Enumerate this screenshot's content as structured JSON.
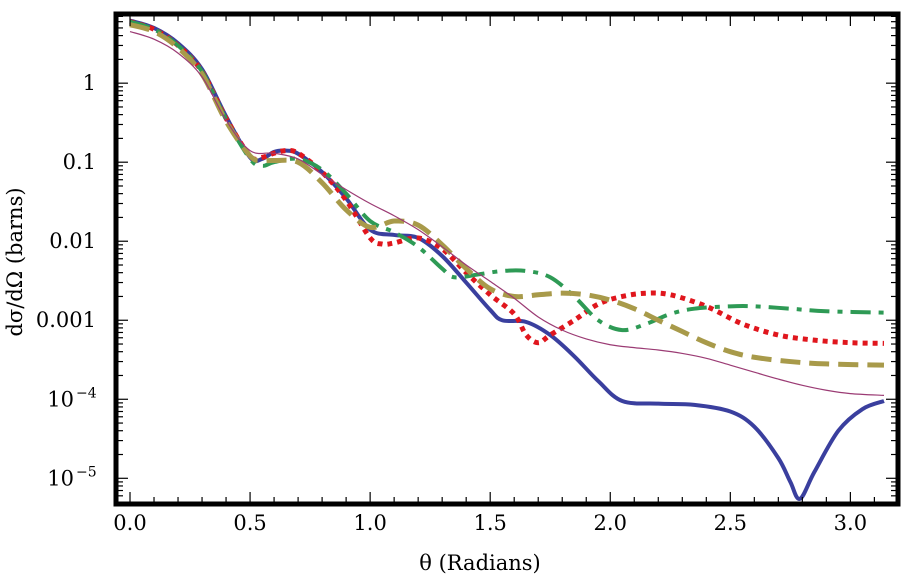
{
  "chart_data": {
    "type": "line",
    "xlabel": "θ (Radians)",
    "ylabel": "dσ/dΩ (barns)",
    "xlim": [
      -0.05,
      3.19
    ],
    "ylim_log10": [
      -5.3,
      0.85
    ],
    "y_scale": "log",
    "grid": false,
    "legend": "none",
    "x_ticks": [
      {
        "value": 0.0,
        "label": "0.0"
      },
      {
        "value": 0.5,
        "label": "0.5"
      },
      {
        "value": 1.0,
        "label": "1.0"
      },
      {
        "value": 1.5,
        "label": "1.5"
      },
      {
        "value": 2.0,
        "label": "2.0"
      },
      {
        "value": 2.5,
        "label": "2.5"
      },
      {
        "value": 3.0,
        "label": "3.0"
      }
    ],
    "y_ticks": [
      {
        "value": 1,
        "label": "1",
        "exp": ""
      },
      {
        "value": 0.1,
        "label": "0.1",
        "exp": ""
      },
      {
        "value": 0.01,
        "label": "0.01",
        "exp": ""
      },
      {
        "value": 0.001,
        "label": "0.001",
        "exp": ""
      },
      {
        "value": 0.0001,
        "label": "10",
        "exp": "−4"
      },
      {
        "value": 1e-05,
        "label": "10",
        "exp": "−5"
      }
    ],
    "series": [
      {
        "color": "#3a3f9e",
        "dash": "solid",
        "width": 4,
        "points": [
          [
            0.0,
            6.2
          ],
          [
            0.1,
            5.0
          ],
          [
            0.2,
            3.2
          ],
          [
            0.3,
            1.5
          ],
          [
            0.4,
            0.38
          ],
          [
            0.5,
            0.115
          ],
          [
            0.55,
            0.11
          ],
          [
            0.6,
            0.135
          ],
          [
            0.65,
            0.14
          ],
          [
            0.7,
            0.128
          ],
          [
            0.8,
            0.075
          ],
          [
            0.9,
            0.035
          ],
          [
            1.0,
            0.014
          ],
          [
            1.1,
            0.012
          ],
          [
            1.2,
            0.011
          ],
          [
            1.3,
            0.0065
          ],
          [
            1.4,
            0.003
          ],
          [
            1.5,
            0.00135
          ],
          [
            1.55,
            0.001
          ],
          [
            1.65,
            0.00095
          ],
          [
            1.75,
            0.00065
          ],
          [
            1.85,
            0.00035
          ],
          [
            1.95,
            0.00017
          ],
          [
            2.05,
            9.5e-05
          ],
          [
            2.2,
            8.8e-05
          ],
          [
            2.35,
            8.5e-05
          ],
          [
            2.5,
            7e-05
          ],
          [
            2.6,
            4.5e-05
          ],
          [
            2.7,
            1.8e-05
          ],
          [
            2.75,
            9e-06
          ],
          [
            2.79,
            5.5e-06
          ],
          [
            2.85,
            1.2e-05
          ],
          [
            2.95,
            4e-05
          ],
          [
            3.05,
            7.5e-05
          ],
          [
            3.14,
            9.5e-05
          ]
        ]
      },
      {
        "color": "#e0161d",
        "dash": "dotted",
        "width": 5,
        "points": [
          [
            0.0,
            6.0
          ],
          [
            0.1,
            4.8
          ],
          [
            0.2,
            3.0
          ],
          [
            0.3,
            1.4
          ],
          [
            0.4,
            0.36
          ],
          [
            0.5,
            0.12
          ],
          [
            0.55,
            0.115
          ],
          [
            0.6,
            0.13
          ],
          [
            0.65,
            0.14
          ],
          [
            0.7,
            0.13
          ],
          [
            0.8,
            0.075
          ],
          [
            0.9,
            0.033
          ],
          [
            1.0,
            0.011
          ],
          [
            1.05,
            0.0092
          ],
          [
            1.1,
            0.0095
          ],
          [
            1.2,
            0.011
          ],
          [
            1.3,
            0.008
          ],
          [
            1.4,
            0.004
          ],
          [
            1.5,
            0.0021
          ],
          [
            1.6,
            0.0012
          ],
          [
            1.65,
            0.00065
          ],
          [
            1.7,
            0.00052
          ],
          [
            1.75,
            0.00065
          ],
          [
            1.85,
            0.001
          ],
          [
            1.95,
            0.0016
          ],
          [
            2.05,
            0.002
          ],
          [
            2.15,
            0.0022
          ],
          [
            2.25,
            0.0021
          ],
          [
            2.4,
            0.0015
          ],
          [
            2.55,
            0.0009
          ],
          [
            2.7,
            0.00065
          ],
          [
            2.85,
            0.00056
          ],
          [
            3.0,
            0.00052
          ],
          [
            3.14,
            0.00051
          ]
        ]
      },
      {
        "color": "#2e9a55",
        "dash": "dashdot",
        "width": 4,
        "points": [
          [
            0.0,
            6.0
          ],
          [
            0.1,
            4.8
          ],
          [
            0.2,
            3.0
          ],
          [
            0.3,
            1.4
          ],
          [
            0.4,
            0.35
          ],
          [
            0.5,
            0.11
          ],
          [
            0.55,
            0.09
          ],
          [
            0.6,
            0.1
          ],
          [
            0.7,
            0.11
          ],
          [
            0.8,
            0.08
          ],
          [
            0.9,
            0.04
          ],
          [
            1.0,
            0.018
          ],
          [
            1.1,
            0.013
          ],
          [
            1.2,
            0.0085
          ],
          [
            1.3,
            0.0045
          ],
          [
            1.35,
            0.0035
          ],
          [
            1.45,
            0.0038
          ],
          [
            1.55,
            0.0042
          ],
          [
            1.65,
            0.0042
          ],
          [
            1.75,
            0.0035
          ],
          [
            1.85,
            0.002
          ],
          [
            1.95,
            0.001
          ],
          [
            2.05,
            0.00075
          ],
          [
            2.15,
            0.0009
          ],
          [
            2.25,
            0.0012
          ],
          [
            2.35,
            0.0014
          ],
          [
            2.5,
            0.0015
          ],
          [
            2.6,
            0.0015
          ],
          [
            2.75,
            0.0014
          ],
          [
            2.9,
            0.0013
          ],
          [
            3.14,
            0.00125
          ]
        ]
      },
      {
        "color": "#a89a4a",
        "dash": "dashed",
        "width": 5,
        "points": [
          [
            0.0,
            5.5
          ],
          [
            0.1,
            4.5
          ],
          [
            0.2,
            2.8
          ],
          [
            0.3,
            1.3
          ],
          [
            0.4,
            0.33
          ],
          [
            0.5,
            0.12
          ],
          [
            0.55,
            0.105
          ],
          [
            0.6,
            0.105
          ],
          [
            0.7,
            0.1
          ],
          [
            0.8,
            0.055
          ],
          [
            0.9,
            0.025
          ],
          [
            1.0,
            0.015
          ],
          [
            1.1,
            0.018
          ],
          [
            1.2,
            0.016
          ],
          [
            1.3,
            0.009
          ],
          [
            1.4,
            0.0045
          ],
          [
            1.5,
            0.0025
          ],
          [
            1.6,
            0.002
          ],
          [
            1.7,
            0.0021
          ],
          [
            1.8,
            0.0022
          ],
          [
            1.9,
            0.0021
          ],
          [
            2.0,
            0.0018
          ],
          [
            2.1,
            0.0014
          ],
          [
            2.2,
            0.001
          ],
          [
            2.3,
            0.00072
          ],
          [
            2.4,
            0.00052
          ],
          [
            2.5,
            0.0004
          ],
          [
            2.6,
            0.00034
          ],
          [
            2.75,
            0.0003
          ],
          [
            2.9,
            0.00028
          ],
          [
            3.14,
            0.00027
          ]
        ]
      },
      {
        "color": "#9b3b74",
        "dash": "solid",
        "width": 1.2,
        "points": [
          [
            0.0,
            4.5
          ],
          [
            0.1,
            3.6
          ],
          [
            0.2,
            2.4
          ],
          [
            0.3,
            1.2
          ],
          [
            0.4,
            0.34
          ],
          [
            0.5,
            0.14
          ],
          [
            0.6,
            0.13
          ],
          [
            0.7,
            0.11
          ],
          [
            0.8,
            0.07
          ],
          [
            0.9,
            0.045
          ],
          [
            1.0,
            0.03
          ],
          [
            1.1,
            0.021
          ],
          [
            1.2,
            0.014
          ],
          [
            1.3,
            0.0085
          ],
          [
            1.4,
            0.005
          ],
          [
            1.5,
            0.0031
          ],
          [
            1.6,
            0.0019
          ],
          [
            1.7,
            0.0011
          ],
          [
            1.8,
            0.00075
          ],
          [
            1.9,
            0.00058
          ],
          [
            2.0,
            0.00049
          ],
          [
            2.1,
            0.00045
          ],
          [
            2.2,
            0.00042
          ],
          [
            2.3,
            0.00038
          ],
          [
            2.4,
            0.00033
          ],
          [
            2.5,
            0.00027
          ],
          [
            2.6,
            0.00022
          ],
          [
            2.7,
            0.00018
          ],
          [
            2.8,
            0.00015
          ],
          [
            2.9,
            0.00013
          ],
          [
            3.0,
            0.000118
          ],
          [
            3.14,
            0.000112
          ]
        ]
      }
    ]
  }
}
